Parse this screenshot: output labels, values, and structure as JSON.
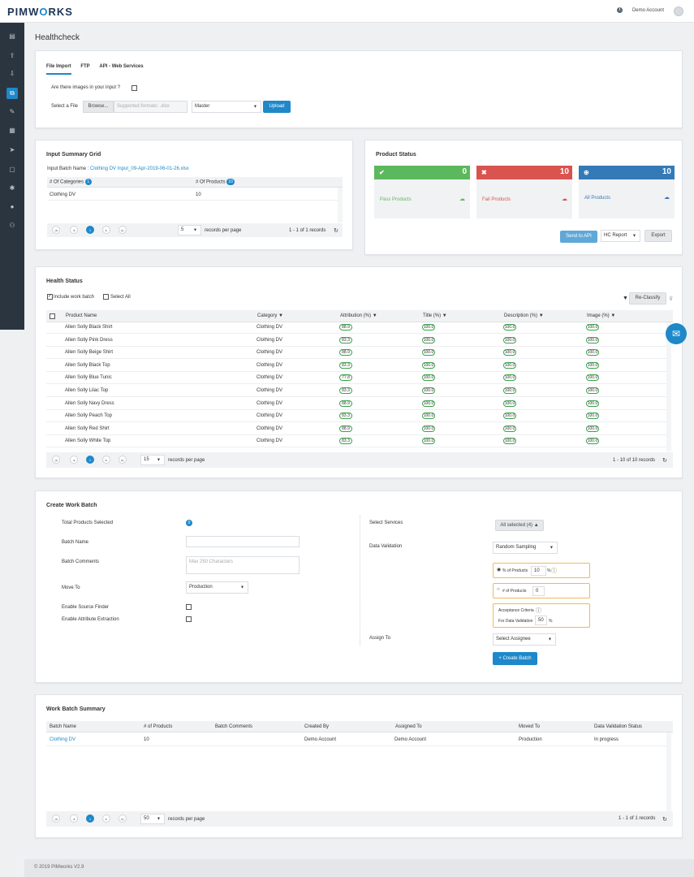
{
  "header": {
    "logo_left": "PIMW",
    "logo_o": "O",
    "logo_right": "RKS",
    "account": "Demo Account"
  },
  "page": {
    "title": "Healthcheck"
  },
  "file_import": {
    "tabs": [
      "File Import",
      "FTP",
      "API - Web Services"
    ],
    "images_question": "Are there images in your input ?",
    "select_file_label": "Select a File",
    "browse_label": "Browse...",
    "formats_placeholder": "Supported formats: .xlsx",
    "master_value": "Master",
    "upload_label": "Upload"
  },
  "input_summary": {
    "title": "Input Summary Grid",
    "batch_name_label": "Input Batch Name :",
    "batch_name_value": "Clothing DV Input_09-Apr-2019-06-01-26.xlsx",
    "col_categories": "# Of Categories",
    "categories_count": "1",
    "col_products": "# Of Products",
    "products_count": "10",
    "row_category": "Clothing DV",
    "row_products": "10",
    "page_size": "5",
    "records_per_page": "records per page",
    "records_info": "1 - 1 of 1 records"
  },
  "product_status": {
    "title": "Product Status",
    "pass_count": "0",
    "pass_label": "Pass Products",
    "fail_count": "10",
    "fail_label": "Fail Products",
    "all_count": "10",
    "all_label": "All Products",
    "send_api": "Send to API",
    "hc_report": "HC Report",
    "export": "Export",
    "colors": {
      "pass": "#5cb85c",
      "fail": "#d9534f",
      "all": "#337ab7"
    }
  },
  "health_status": {
    "title": "Health Status",
    "include_work_batch": "Include work batch",
    "select_all": "Select All",
    "reclassify": "Re-Classify",
    "columns": [
      "Product Name",
      "Category",
      "Attribution (%)",
      "Title (%)",
      "Description (%)",
      "Image (%)"
    ],
    "rows": [
      {
        "name": "Allen Solly Black Shirt",
        "category": "Clothing DV",
        "attribution": "88.9",
        "title": "100.0",
        "description": "100.0",
        "image": "100.0"
      },
      {
        "name": "Allen Solly Pink Dress",
        "category": "Clothing DV",
        "attribution": "83.3",
        "title": "100.0",
        "description": "100.0",
        "image": "100.0"
      },
      {
        "name": "Allen Solly Beige Shirt",
        "category": "Clothing DV",
        "attribution": "88.9",
        "title": "100.0",
        "description": "100.0",
        "image": "100.0"
      },
      {
        "name": "Allen Solly Black Top",
        "category": "Clothing DV",
        "attribution": "83.3",
        "title": "100.0",
        "description": "100.0",
        "image": "100.0"
      },
      {
        "name": "Allen Solly Blue Tunic",
        "category": "Clothing DV",
        "attribution": "77.8",
        "title": "100.0",
        "description": "100.0",
        "image": "100.0"
      },
      {
        "name": "Allen Solly Lilac Top",
        "category": "Clothing DV",
        "attribution": "83.3",
        "title": "100.0",
        "description": "100.0",
        "image": "100.0"
      },
      {
        "name": "Allen Solly Navy Dress",
        "category": "Clothing DV",
        "attribution": "88.9",
        "title": "100.0",
        "description": "100.0",
        "image": "100.0"
      },
      {
        "name": "Allen Solly Peach Top",
        "category": "Clothing DV",
        "attribution": "83.3",
        "title": "100.0",
        "description": "100.0",
        "image": "100.0"
      },
      {
        "name": "Allen Solly Red Shirt",
        "category": "Clothing DV",
        "attribution": "88.9",
        "title": "100.0",
        "description": "100.0",
        "image": "100.0"
      },
      {
        "name": "Allen Solly White Top",
        "category": "Clothing DV",
        "attribution": "83.3",
        "title": "100.0",
        "description": "100.0",
        "image": "100.0"
      }
    ],
    "page_size": "15",
    "records_per_page": "records per page",
    "records_info": "1 - 10 of 10 records"
  },
  "work_batch": {
    "title": "Create Work Batch",
    "total_selected_label": "Total Products Selected",
    "total_selected_value": "0",
    "batch_name_label": "Batch Name",
    "batch_comments_label": "Batch Comments",
    "comments_placeholder": "Max 250 Characters",
    "move_to_label": "Move To",
    "move_to_value": "Production",
    "source_finder_label": "Enable Source Finder",
    "attr_extraction_label": "Enable Attribute Extraction",
    "select_services_label": "Select Services",
    "services_value": "All selected (4)",
    "data_validation_label": "Data Validation",
    "data_validation_value": "Random Sampling",
    "pct_products_label": "% of Products",
    "pct_products_value": "10",
    "pct_sign": "%",
    "num_products_label": "# of Products",
    "num_products_value": "0",
    "acceptance_label": "Acceptance Criteria",
    "for_dv_label": "For Data Validation",
    "for_dv_value": "50",
    "assign_to_label": "Assign To",
    "assign_to_value": "Select Assignee",
    "create_batch": "+ Create Batch"
  },
  "batch_summary": {
    "title": "Work Batch Summary",
    "columns": [
      "Batch Name",
      "# of Products",
      "Batch Comments",
      "Created By",
      "Assigned To",
      "Moved To",
      "Data Validation Status"
    ],
    "row": {
      "name": "Clothing DV",
      "products": "10",
      "comments": "",
      "created_by": "Demo Account",
      "assigned_to": "Demo Account",
      "moved_to": "Production",
      "status": "In progress"
    },
    "page_size": "50",
    "records_per_page": "records per page",
    "records_info": "1 - 1 of 1 records"
  },
  "footer": {
    "copyright": "© 2019 PIMworks V2.9"
  }
}
